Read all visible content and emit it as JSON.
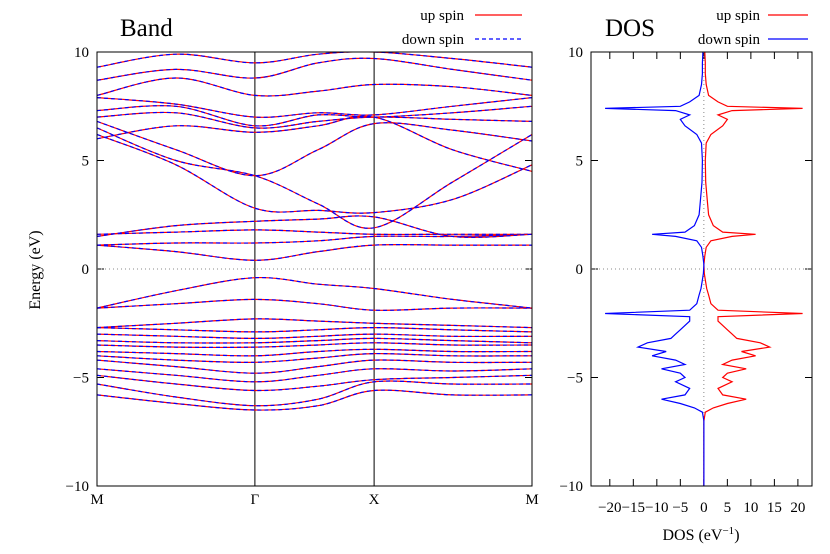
{
  "chart_data": [
    {
      "panel": "band",
      "type": "line",
      "title": "Band",
      "ylabel": "Energy (eV)",
      "ylim": [
        -10,
        10
      ],
      "yticks": [
        -10,
        -5,
        0,
        5,
        10
      ],
      "xtick_labels": [
        "M",
        "Γ",
        "X",
        "M"
      ],
      "kpath_positions": [
        0,
        1,
        1.755,
        2.755
      ],
      "fermi_level": 0,
      "legend": [
        {
          "name": "up spin",
          "color": "#ff0000",
          "style": "solid"
        },
        {
          "name": "down spin",
          "color": "#0000ff",
          "style": "dashed"
        }
      ],
      "bands": [
        {
          "name": "",
          "x": [
            0,
            0.5,
            1,
            1.4,
            1.755,
            2.25,
            2.755
          ],
          "y": [
            -5.8,
            -6.2,
            -6.5,
            -6.3,
            -5.6,
            -5.8,
            -5.8
          ]
        },
        {
          "name": "",
          "x": [
            0,
            0.5,
            1,
            1.4,
            1.755,
            2.25,
            2.755
          ],
          "y": [
            -5.3,
            -5.9,
            -6.3,
            -6.0,
            -5.2,
            -5.3,
            -5.3
          ]
        },
        {
          "name": "",
          "x": [
            0,
            0.5,
            1,
            1.4,
            1.755,
            2.25,
            2.755
          ],
          "y": [
            -4.9,
            -5.3,
            -5.6,
            -5.4,
            -5.1,
            -5.0,
            -4.9
          ]
        },
        {
          "name": "",
          "x": [
            0,
            0.5,
            1,
            1.4,
            1.755,
            2.25,
            2.755
          ],
          "y": [
            -4.6,
            -4.9,
            -5.2,
            -4.9,
            -4.6,
            -4.7,
            -4.6
          ]
        },
        {
          "name": "",
          "x": [
            0,
            0.5,
            1,
            1.4,
            1.755,
            2.25,
            2.755
          ],
          "y": [
            -4.2,
            -4.5,
            -4.8,
            -4.5,
            -4.2,
            -4.3,
            -4.3
          ]
        },
        {
          "name": "",
          "x": [
            0,
            0.5,
            1,
            1.4,
            1.755,
            2.25,
            2.755
          ],
          "y": [
            -4.0,
            -4.2,
            -4.3,
            -4.1,
            -3.9,
            -4.0,
            -4.0
          ]
        },
        {
          "name": "",
          "x": [
            0,
            0.5,
            1,
            1.4,
            1.755,
            2.25,
            2.755
          ],
          "y": [
            -3.8,
            -3.9,
            -4.0,
            -3.8,
            -3.7,
            -3.8,
            -3.8
          ]
        },
        {
          "name": "",
          "x": [
            0,
            0.5,
            1,
            1.4,
            1.755,
            2.25,
            2.755
          ],
          "y": [
            -3.5,
            -3.6,
            -3.6,
            -3.5,
            -3.4,
            -3.5,
            -3.5
          ]
        },
        {
          "name": "",
          "x": [
            0,
            0.5,
            1,
            1.4,
            1.755,
            2.25,
            2.755
          ],
          "y": [
            -3.3,
            -3.4,
            -3.4,
            -3.3,
            -3.2,
            -3.3,
            -3.4
          ]
        },
        {
          "name": "",
          "x": [
            0,
            0.5,
            1,
            1.4,
            1.755,
            2.25,
            2.755
          ],
          "y": [
            -3.0,
            -3.1,
            -3.2,
            -3.1,
            -3.0,
            -3.1,
            -3.1
          ]
        },
        {
          "name": "",
          "x": [
            0,
            0.5,
            1,
            1.4,
            1.755,
            2.25,
            2.755
          ],
          "y": [
            -2.7,
            -2.8,
            -2.9,
            -2.8,
            -2.7,
            -2.8,
            -2.9
          ]
        },
        {
          "name": "",
          "x": [
            0,
            0.5,
            1,
            1.4,
            1.755,
            2.25,
            2.755
          ],
          "y": [
            -2.7,
            -2.5,
            -2.3,
            -2.4,
            -2.5,
            -2.6,
            -2.7
          ]
        },
        {
          "name": "",
          "x": [
            0,
            0.5,
            1,
            1.4,
            1.755,
            2.25,
            2.755
          ],
          "y": [
            -1.8,
            -1.6,
            -1.4,
            -1.6,
            -1.9,
            -1.8,
            -1.8
          ]
        },
        {
          "name": "",
          "x": [
            0,
            0.5,
            1,
            1.4,
            1.755,
            2.25,
            2.755
          ],
          "y": [
            -1.8,
            -1.0,
            -0.4,
            -0.7,
            -0.9,
            -1.4,
            -1.8
          ]
        },
        {
          "name": "",
          "x": [
            0,
            0.5,
            1,
            1.4,
            1.755,
            2.25,
            2.755
          ],
          "y": [
            1.1,
            0.8,
            0.4,
            0.8,
            1.1,
            1.1,
            1.1
          ]
        },
        {
          "name": "",
          "x": [
            0,
            0.5,
            1,
            1.4,
            1.755,
            2.25,
            2.755
          ],
          "y": [
            1.1,
            1.2,
            1.2,
            1.3,
            1.5,
            1.5,
            1.6
          ]
        },
        {
          "name": "",
          "x": [
            0,
            0.5,
            1,
            1.4,
            1.755,
            2.25,
            2.755
          ],
          "y": [
            1.6,
            1.7,
            1.8,
            1.7,
            1.6,
            1.6,
            1.6
          ]
        },
        {
          "name": "",
          "x": [
            0,
            0.5,
            1,
            1.4,
            1.755,
            2.25,
            2.755
          ],
          "y": [
            1.5,
            2.0,
            2.2,
            2.3,
            2.4,
            1.5,
            1.6
          ]
        },
        {
          "name": "",
          "x": [
            0,
            0.5,
            1,
            1.4,
            1.755,
            2.25,
            2.755
          ],
          "y": [
            6.2,
            4.8,
            2.8,
            2.7,
            2.6,
            3.2,
            4.8
          ]
        },
        {
          "name": "",
          "x": [
            0,
            0.5,
            1,
            1.4,
            1.755,
            2.25,
            2.755
          ],
          "y": [
            6.5,
            5.0,
            4.3,
            3.0,
            1.9,
            4.0,
            6.2
          ]
        },
        {
          "name": "",
          "x": [
            0,
            0.5,
            1,
            1.4,
            1.755,
            2.25,
            2.755
          ],
          "y": [
            6.8,
            5.5,
            4.3,
            5.5,
            6.7,
            6.4,
            5.9
          ]
        },
        {
          "name": "",
          "x": [
            0,
            0.5,
            1,
            1.4,
            1.755,
            2.25,
            2.755
          ],
          "y": [
            7.0,
            7.2,
            6.5,
            6.8,
            7.0,
            6.9,
            6.8
          ]
        },
        {
          "name": "",
          "x": [
            0,
            0.5,
            1,
            1.4,
            1.755,
            2.25,
            2.755
          ],
          "y": [
            7.3,
            7.5,
            6.6,
            7.1,
            7.0,
            7.2,
            7.5
          ]
        },
        {
          "name": "",
          "x": [
            0,
            0.5,
            1,
            1.4,
            1.755,
            2.25,
            2.755
          ],
          "y": [
            7.9,
            7.6,
            7.0,
            7.2,
            7.1,
            7.5,
            7.9
          ]
        },
        {
          "name": "",
          "x": [
            0,
            0.5,
            1,
            1.4,
            1.755,
            2.25,
            2.755
          ],
          "y": [
            8.0,
            8.8,
            8.0,
            8.2,
            8.5,
            8.4,
            8.0
          ]
        },
        {
          "name": "",
          "x": [
            0,
            0.5,
            1,
            1.4,
            1.755,
            2.25,
            2.755
          ],
          "y": [
            8.7,
            9.2,
            8.8,
            9.5,
            9.7,
            9.2,
            8.7
          ]
        },
        {
          "name": "",
          "x": [
            0,
            0.5,
            1,
            1.4,
            1.755,
            2.25,
            2.755
          ],
          "y": [
            9.3,
            9.9,
            9.5,
            9.9,
            10.0,
            9.7,
            9.3
          ]
        },
        {
          "name": "",
          "x": [
            0,
            0.5,
            1,
            1.4,
            1.755,
            2.25,
            2.755
          ],
          "y": [
            6.0,
            6.6,
            6.3,
            6.6,
            7.0,
            5.5,
            4.5
          ]
        }
      ],
      "xtick_label_y": 504
    },
    {
      "panel": "dos",
      "type": "line",
      "title": "DOS",
      "xlabel": "DOS (eV",
      "xlabel_sup": "−1",
      "xlabel_close": ")",
      "xlim": [
        -24,
        23
      ],
      "xticks": [
        -20,
        -15,
        -10,
        -5,
        0,
        5,
        10,
        15,
        20
      ],
      "xtick_labels": [
        "−20",
        "−15",
        "−10",
        "−5",
        "0",
        "5",
        "10",
        "15",
        "20"
      ],
      "ylim": [
        -10,
        10
      ],
      "yticks": [
        -10,
        -5,
        0,
        5,
        10
      ],
      "legend": [
        {
          "name": "up spin",
          "color": "#ff0000",
          "style": "solid"
        },
        {
          "name": "down spin",
          "color": "#0000ff",
          "style": "solid"
        }
      ],
      "energy": [
        -10,
        -7.0,
        -6.6,
        -6.4,
        -6.2,
        -6.0,
        -5.8,
        -5.5,
        -5.2,
        -5.0,
        -4.8,
        -4.6,
        -4.4,
        -4.2,
        -4.0,
        -3.8,
        -3.6,
        -3.4,
        -3.2,
        -3.0,
        -2.8,
        -2.6,
        -2.4,
        -2.2,
        -2.05,
        -1.9,
        -1.6,
        -1.2,
        -0.9,
        -0.5,
        -0.2,
        0.2,
        0.6,
        1.0,
        1.3,
        1.5,
        1.6,
        1.7,
        2.0,
        2.5,
        3.0,
        4.0,
        5.0,
        5.8,
        6.2,
        6.6,
        6.9,
        7.1,
        7.3,
        7.4,
        7.5,
        7.7,
        8.0,
        8.5,
        9.0,
        9.5,
        10.0
      ],
      "up": [
        0,
        0,
        0.3,
        2,
        5,
        9,
        4,
        3,
        6,
        4,
        5,
        9,
        4,
        6,
        11,
        8,
        14,
        12,
        7,
        6,
        5,
        4,
        3,
        3,
        21,
        3,
        1.5,
        1,
        0.6,
        0.3,
        0.1,
        0,
        0.2,
        0.5,
        1.5,
        6,
        11,
        4,
        2,
        1,
        0.8,
        0.4,
        0.3,
        0.5,
        1.5,
        4,
        5,
        3,
        6,
        21,
        5,
        3,
        1,
        0.5,
        0.3,
        0.3,
        0.2
      ],
      "down": [
        0,
        0,
        0.3,
        2,
        5,
        9,
        4,
        3,
        6,
        4,
        5,
        9,
        4,
        6,
        11,
        8,
        14,
        12,
        7,
        6,
        5,
        4,
        3,
        3,
        21,
        3,
        1.5,
        1,
        0.6,
        0.3,
        0.1,
        0,
        0.2,
        0.5,
        1.5,
        6,
        11,
        4,
        2,
        1,
        0.8,
        0.4,
        0.3,
        0.5,
        1.5,
        4,
        5,
        3,
        6,
        21,
        5,
        3,
        1,
        0.5,
        0.3,
        0.3,
        0.2
      ]
    }
  ]
}
